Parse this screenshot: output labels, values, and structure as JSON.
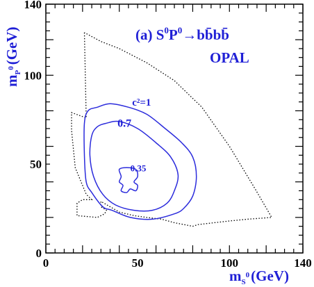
{
  "colors": {
    "accent": "#1f1fd6",
    "axis": "#000000",
    "contour": "#2b2bdc",
    "boundary": "#000000"
  },
  "chart_data": {
    "type": "contour",
    "xlabel_main": "m",
    "xlabel_sub": "S",
    "xlabel_sup": "0",
    "xlabel_unit": "(GeV)",
    "ylabel_main": "m",
    "ylabel_sub": "P",
    "ylabel_sup": "0",
    "ylabel_unit": "(GeV)",
    "xlim": [
      0,
      140
    ],
    "ylim": [
      0,
      140
    ],
    "xticks": [
      "0",
      "50",
      "100",
      "140"
    ],
    "yticks": [
      "0",
      "50",
      "100",
      "140"
    ],
    "title_main": "(a) S",
    "title_sup1": "0",
    "title_mid": "P",
    "title_sup2": "0",
    "title_arrow": "→",
    "title_end": "bb̄bb̄",
    "experiment": "OPAL",
    "labels": [
      {
        "text": "c²=1",
        "x": 47,
        "y": 83
      },
      {
        "text": "0.7",
        "x": 39,
        "y": 71
      },
      {
        "text": "0.35",
        "x": 46,
        "y": 46
      }
    ],
    "boundary": [
      [
        21,
        124
      ],
      [
        22,
        76
      ],
      [
        14,
        79
      ],
      [
        14,
        69
      ],
      [
        16,
        48
      ],
      [
        22,
        33
      ],
      [
        25,
        30
      ],
      [
        20,
        30
      ],
      [
        17,
        28
      ],
      [
        17,
        21
      ],
      [
        28,
        20
      ],
      [
        32,
        22
      ],
      [
        33,
        24
      ],
      [
        30,
        26
      ],
      [
        30,
        29
      ],
      [
        40,
        23
      ],
      [
        48,
        21
      ],
      [
        55,
        20
      ],
      [
        63,
        19
      ],
      [
        70,
        17
      ],
      [
        80,
        15
      ],
      [
        83,
        16
      ],
      [
        100,
        18
      ],
      [
        110,
        19
      ],
      [
        123,
        20
      ],
      [
        114,
        36
      ],
      [
        100,
        60
      ],
      [
        85,
        82
      ],
      [
        70,
        97
      ],
      [
        55,
        107
      ],
      [
        40,
        115
      ],
      [
        30,
        119
      ],
      [
        21,
        124
      ]
    ],
    "contours": [
      {
        "level": "1",
        "points": [
          [
            21,
            73
          ],
          [
            23,
            80
          ],
          [
            28,
            82
          ],
          [
            35,
            84
          ],
          [
            45,
            82
          ],
          [
            55,
            78
          ],
          [
            65,
            70
          ],
          [
            74,
            62
          ],
          [
            80,
            54
          ],
          [
            82,
            43
          ],
          [
            80,
            32
          ],
          [
            75,
            25
          ],
          [
            70,
            22
          ],
          [
            58,
            19
          ],
          [
            46,
            20
          ],
          [
            36,
            24
          ],
          [
            31,
            26
          ],
          [
            25,
            34
          ],
          [
            22,
            40
          ],
          [
            21,
            55
          ],
          [
            21,
            73
          ]
        ]
      },
      {
        "level": "0.7",
        "points": [
          [
            25,
            66
          ],
          [
            28,
            71
          ],
          [
            33,
            73
          ],
          [
            40,
            74
          ],
          [
            50,
            70
          ],
          [
            60,
            62
          ],
          [
            68,
            54
          ],
          [
            72,
            44
          ],
          [
            70,
            35
          ],
          [
            66,
            28
          ],
          [
            58,
            24
          ],
          [
            48,
            24
          ],
          [
            38,
            27
          ],
          [
            31,
            33
          ],
          [
            26,
            43
          ],
          [
            24,
            55
          ],
          [
            25,
            66
          ]
        ]
      },
      {
        "level": "0.35",
        "points": [
          [
            40,
            47
          ],
          [
            44,
            48
          ],
          [
            49,
            47
          ],
          [
            50,
            43
          ],
          [
            48,
            40
          ],
          [
            50,
            38
          ],
          [
            49,
            35
          ],
          [
            46,
            36
          ],
          [
            44,
            34
          ],
          [
            41,
            35
          ],
          [
            42,
            38
          ],
          [
            40,
            40
          ],
          [
            41,
            43
          ],
          [
            40,
            47
          ]
        ]
      }
    ]
  }
}
